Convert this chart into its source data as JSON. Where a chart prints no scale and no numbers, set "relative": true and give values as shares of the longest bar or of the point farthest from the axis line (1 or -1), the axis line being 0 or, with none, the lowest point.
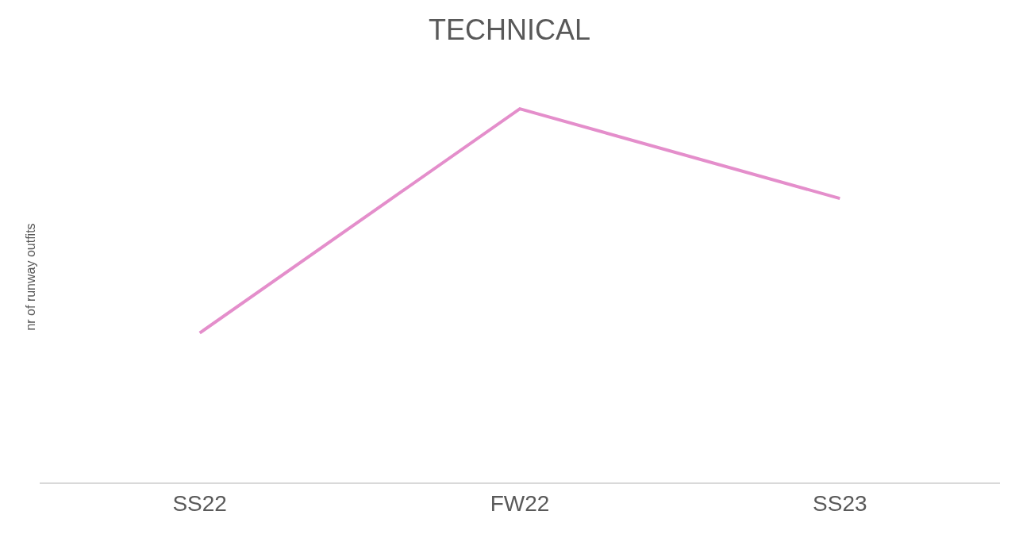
{
  "chart_data": {
    "type": "line",
    "title": "TECHNICAL",
    "ylabel": "nr of runway outfits",
    "categories": [
      "SS22",
      "FW22",
      "SS23"
    ],
    "series": [
      {
        "color": "#e48ecb",
        "values": [
          0.4,
          1,
          0.76
        ]
      }
    ],
    "relative": true,
    "marker": "none",
    "line_style": "solid"
  }
}
